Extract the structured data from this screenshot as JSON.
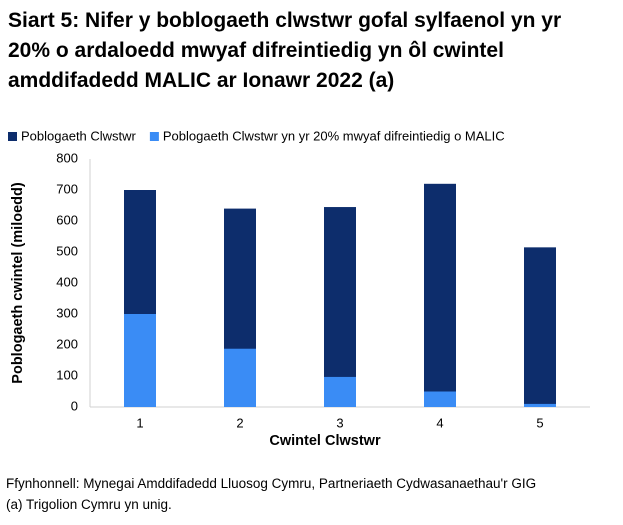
{
  "chart_data": {
    "type": "bar",
    "overlap": true,
    "title": "Siart 5: Nifer y boblogaeth clwstwr gofal sylfaenol yn yr 20% o ardaloedd mwyaf difreintiedig yn ôl cwintel amddifadedd MALIC ar Ionawr 2022 (a)",
    "categories": [
      "1",
      "2",
      "3",
      "4",
      "5"
    ],
    "series": [
      {
        "name": "Poblogaeth Clwstwr",
        "color": "#0d2d6c",
        "values": [
          700,
          640,
          645,
          720,
          515
        ]
      },
      {
        "name": "Poblogaeth Clwstwr yn yr 20% mwyaf difreintiedig o MALIC",
        "color": "#3a8cf5",
        "values": [
          300,
          188,
          97,
          50,
          10
        ]
      }
    ],
    "xlabel": "Cwintel Clwstwr",
    "ylabel": "Poblogaeth cwintel (miloedd)",
    "ylim": [
      0,
      800
    ],
    "yticks": [
      0,
      100,
      200,
      300,
      400,
      500,
      600,
      700,
      800
    ],
    "grid": false,
    "legend": "top",
    "notes": [
      "Ffynhonnell: Mynegai Amddifadedd Lluosog Cymru, Partneriaeth Cydwasanaethau'r GIG",
      "(a) Trigolion Cymru yn unig."
    ]
  }
}
